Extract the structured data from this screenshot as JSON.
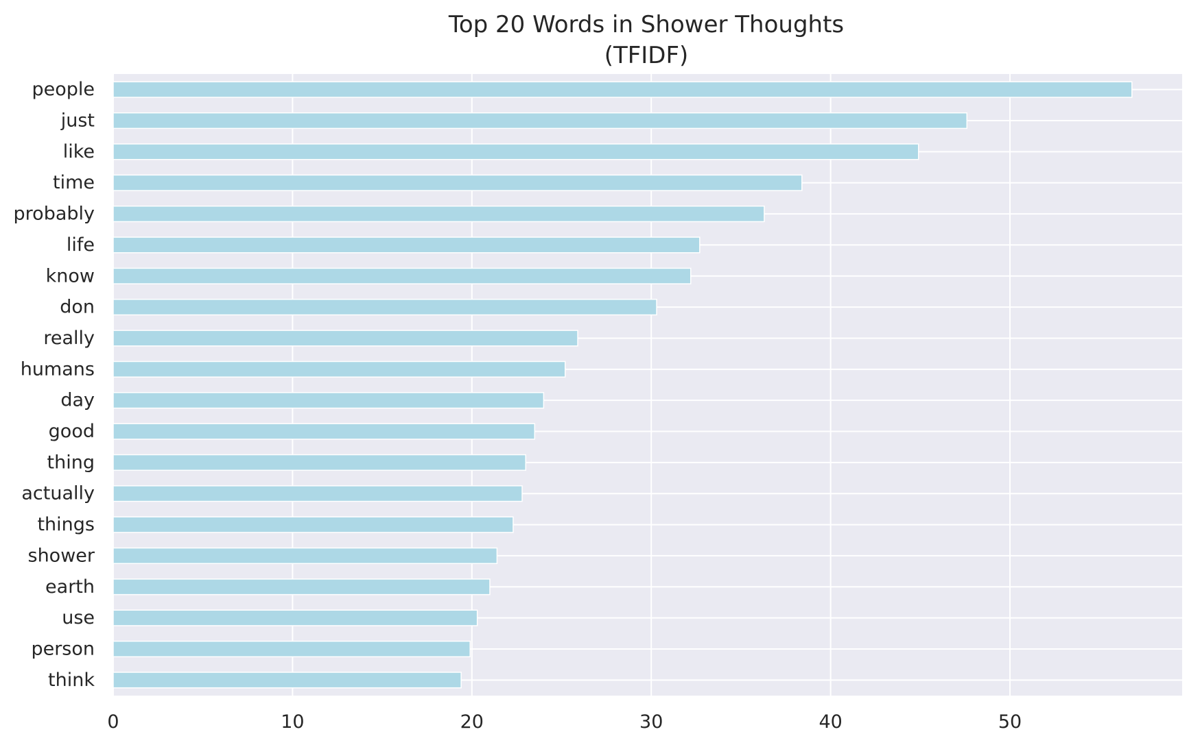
{
  "chart_data": {
    "type": "bar",
    "orientation": "horizontal",
    "title": "Top 20 Words in Shower Thoughts",
    "subtitle": "(TFIDF)",
    "xlabel": "",
    "ylabel": "",
    "categories": [
      "people",
      "just",
      "like",
      "time",
      "probably",
      "life",
      "know",
      "don",
      "really",
      "humans",
      "day",
      "good",
      "thing",
      "actually",
      "things",
      "shower",
      "earth",
      "use",
      "person",
      "think"
    ],
    "values": [
      56.8,
      47.6,
      44.9,
      38.4,
      36.3,
      32.7,
      32.2,
      30.3,
      25.9,
      25.2,
      24.0,
      23.5,
      23.0,
      22.8,
      22.3,
      21.4,
      21.0,
      20.3,
      19.9,
      19.4
    ],
    "xlim": [
      0,
      59.6
    ],
    "xticks": [
      0,
      10,
      20,
      30,
      40,
      50
    ],
    "grid": true,
    "legend": "none",
    "colors": {
      "bar": "#add8e6",
      "bar_edge": "#ffffff",
      "plot_background": "#eaeaf2",
      "grid": "#ffffff",
      "text": "#262626"
    }
  }
}
